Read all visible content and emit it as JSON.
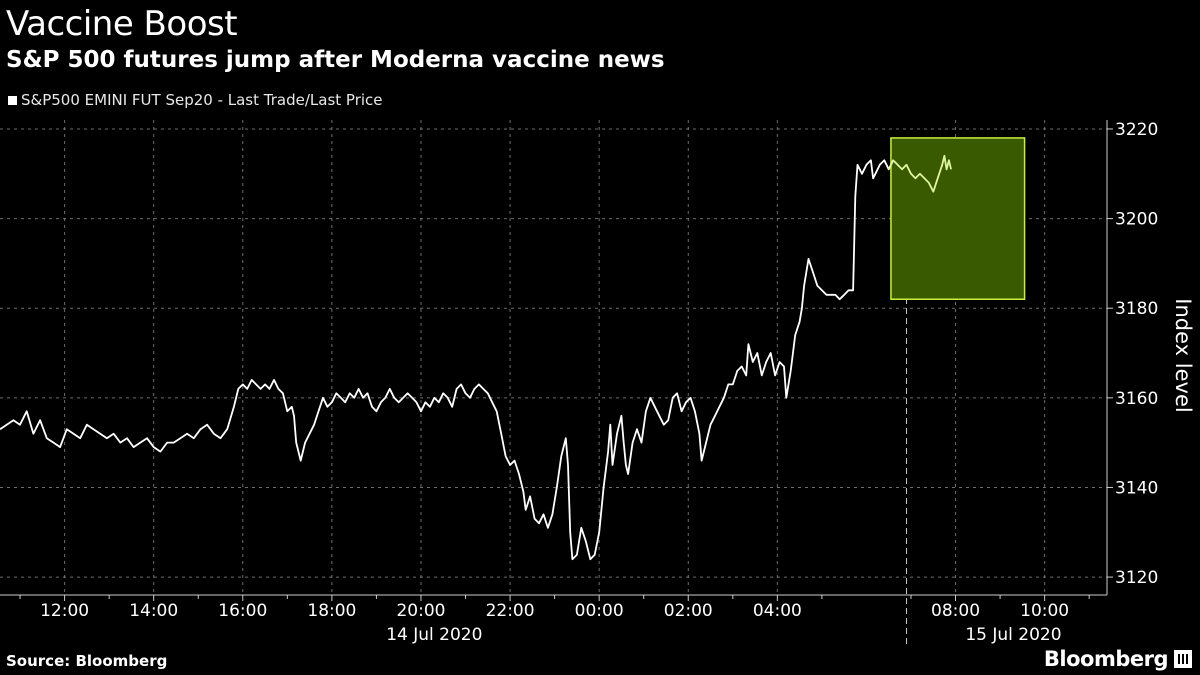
{
  "header": {
    "title": "Vaccine Boost",
    "subtitle": "S&P 500 futures jump after Moderna vaccine news"
  },
  "legend": {
    "label": "S&P500 EMINI FUT  Sep20 - Last Trade/Last Price"
  },
  "footer": {
    "source": "Source: Bloomberg",
    "brand": "Bloomberg"
  },
  "chart_data": {
    "type": "line",
    "ylabel": "Index level",
    "ylim": [
      3116,
      3222
    ],
    "yticks": [
      3120,
      3140,
      3160,
      3180,
      3200,
      3220
    ],
    "x_hours_range": [
      10.55,
      35.4
    ],
    "xticks": [
      {
        "label": "12:00",
        "h": 12
      },
      {
        "label": "14:00",
        "h": 14
      },
      {
        "label": "16:00",
        "h": 16
      },
      {
        "label": "18:00",
        "h": 18
      },
      {
        "label": "20:00",
        "h": 20
      },
      {
        "label": "22:00",
        "h": 22
      },
      {
        "label": "00:00",
        "h": 24
      },
      {
        "label": "02:00",
        "h": 26
      },
      {
        "label": "04:00",
        "h": 28
      },
      {
        "label": "08:00",
        "h": 32
      },
      {
        "label": "10:00",
        "h": 34
      }
    ],
    "date_labels": [
      {
        "label": "14 Jul 2020",
        "h": 20.3
      },
      {
        "label": "15 Jul 2020",
        "h": 33.3
      }
    ],
    "date_separator_h": 30.9,
    "highlight": {
      "x_from": 30.55,
      "x_to": 33.55,
      "y_from": 3182,
      "y_to": 3218,
      "fill": "#3a5a00",
      "stroke": "#c8f040",
      "line_color": "#dff5a0"
    },
    "colors": {
      "line": "#ffffff",
      "grid": "#888888",
      "axis": "#cccccc"
    },
    "series": [
      {
        "points": [
          [
            10.55,
            3153
          ],
          [
            10.7,
            3154
          ],
          [
            10.85,
            3155
          ],
          [
            11.0,
            3154
          ],
          [
            11.15,
            3157
          ],
          [
            11.3,
            3152
          ],
          [
            11.45,
            3155
          ],
          [
            11.6,
            3151
          ],
          [
            11.75,
            3150
          ],
          [
            11.9,
            3149
          ],
          [
            12.05,
            3153
          ],
          [
            12.2,
            3152
          ],
          [
            12.35,
            3151
          ],
          [
            12.5,
            3154
          ],
          [
            12.65,
            3153
          ],
          [
            12.8,
            3152
          ],
          [
            12.95,
            3151
          ],
          [
            13.1,
            3152
          ],
          [
            13.25,
            3150
          ],
          [
            13.4,
            3151
          ],
          [
            13.55,
            3149
          ],
          [
            13.7,
            3150
          ],
          [
            13.85,
            3151
          ],
          [
            14.0,
            3149
          ],
          [
            14.15,
            3148
          ],
          [
            14.3,
            3150
          ],
          [
            14.45,
            3150
          ],
          [
            14.6,
            3151
          ],
          [
            14.75,
            3152
          ],
          [
            14.9,
            3151
          ],
          [
            15.05,
            3153
          ],
          [
            15.2,
            3154
          ],
          [
            15.35,
            3152
          ],
          [
            15.5,
            3151
          ],
          [
            15.65,
            3153
          ],
          [
            15.8,
            3158
          ],
          [
            15.9,
            3162
          ],
          [
            16.0,
            3163
          ],
          [
            16.1,
            3162
          ],
          [
            16.2,
            3164
          ],
          [
            16.3,
            3163
          ],
          [
            16.4,
            3162
          ],
          [
            16.5,
            3163
          ],
          [
            16.6,
            3162
          ],
          [
            16.7,
            3164
          ],
          [
            16.8,
            3162
          ],
          [
            16.9,
            3161
          ],
          [
            17.0,
            3157
          ],
          [
            17.1,
            3158
          ],
          [
            17.15,
            3156
          ],
          [
            17.2,
            3150
          ],
          [
            17.3,
            3146
          ],
          [
            17.4,
            3150
          ],
          [
            17.5,
            3152
          ],
          [
            17.6,
            3154
          ],
          [
            17.7,
            3157
          ],
          [
            17.8,
            3160
          ],
          [
            17.9,
            3158
          ],
          [
            18.0,
            3159
          ],
          [
            18.1,
            3161
          ],
          [
            18.2,
            3160
          ],
          [
            18.3,
            3159
          ],
          [
            18.4,
            3161
          ],
          [
            18.5,
            3160
          ],
          [
            18.6,
            3162
          ],
          [
            18.7,
            3160
          ],
          [
            18.8,
            3161
          ],
          [
            18.9,
            3158
          ],
          [
            19.0,
            3157
          ],
          [
            19.1,
            3159
          ],
          [
            19.2,
            3160
          ],
          [
            19.3,
            3162
          ],
          [
            19.4,
            3160
          ],
          [
            19.5,
            3159
          ],
          [
            19.6,
            3160
          ],
          [
            19.7,
            3161
          ],
          [
            19.8,
            3160
          ],
          [
            19.9,
            3159
          ],
          [
            20.0,
            3157
          ],
          [
            20.1,
            3159
          ],
          [
            20.2,
            3158
          ],
          [
            20.3,
            3160
          ],
          [
            20.4,
            3159
          ],
          [
            20.5,
            3161
          ],
          [
            20.6,
            3160
          ],
          [
            20.7,
            3158
          ],
          [
            20.8,
            3162
          ],
          [
            20.9,
            3163
          ],
          [
            21.0,
            3161
          ],
          [
            21.1,
            3160
          ],
          [
            21.2,
            3162
          ],
          [
            21.3,
            3163
          ],
          [
            21.4,
            3162
          ],
          [
            21.5,
            3161
          ],
          [
            21.6,
            3159
          ],
          [
            21.7,
            3157
          ],
          [
            21.8,
            3152
          ],
          [
            21.9,
            3147
          ],
          [
            22.0,
            3145
          ],
          [
            22.1,
            3146
          ],
          [
            22.2,
            3143
          ],
          [
            22.3,
            3139
          ],
          [
            22.35,
            3135
          ],
          [
            22.45,
            3138
          ],
          [
            22.55,
            3133
          ],
          [
            22.65,
            3132
          ],
          [
            22.75,
            3134
          ],
          [
            22.85,
            3131
          ],
          [
            22.95,
            3134
          ],
          [
            23.05,
            3140
          ],
          [
            23.15,
            3147
          ],
          [
            23.25,
            3151
          ],
          [
            23.3,
            3145
          ],
          [
            23.35,
            3130
          ],
          [
            23.4,
            3124
          ],
          [
            23.5,
            3125
          ],
          [
            23.6,
            3131
          ],
          [
            23.7,
            3128
          ],
          [
            23.8,
            3124
          ],
          [
            23.9,
            3125
          ],
          [
            24.0,
            3130
          ],
          [
            24.1,
            3140
          ],
          [
            24.2,
            3148
          ],
          [
            24.25,
            3154
          ],
          [
            24.3,
            3145
          ],
          [
            24.4,
            3152
          ],
          [
            24.5,
            3156
          ],
          [
            24.55,
            3150
          ],
          [
            24.6,
            3145
          ],
          [
            24.65,
            3143
          ],
          [
            24.75,
            3150
          ],
          [
            24.85,
            3153
          ],
          [
            24.95,
            3150
          ],
          [
            25.05,
            3157
          ],
          [
            25.15,
            3160
          ],
          [
            25.25,
            3158
          ],
          [
            25.35,
            3156
          ],
          [
            25.45,
            3154
          ],
          [
            25.55,
            3155
          ],
          [
            25.65,
            3160
          ],
          [
            25.75,
            3161
          ],
          [
            25.85,
            3157
          ],
          [
            25.95,
            3159
          ],
          [
            26.05,
            3160
          ],
          [
            26.15,
            3157
          ],
          [
            26.25,
            3152
          ],
          [
            26.3,
            3146
          ],
          [
            26.4,
            3150
          ],
          [
            26.5,
            3154
          ],
          [
            26.6,
            3156
          ],
          [
            26.7,
            3158
          ],
          [
            26.8,
            3160
          ],
          [
            26.9,
            3163
          ],
          [
            27.0,
            3163
          ],
          [
            27.1,
            3166
          ],
          [
            27.2,
            3167
          ],
          [
            27.3,
            3165
          ],
          [
            27.35,
            3172
          ],
          [
            27.45,
            3168
          ],
          [
            27.55,
            3170
          ],
          [
            27.65,
            3165
          ],
          [
            27.75,
            3168
          ],
          [
            27.85,
            3170
          ],
          [
            27.95,
            3165
          ],
          [
            28.05,
            3168
          ],
          [
            28.15,
            3167
          ],
          [
            28.2,
            3160
          ],
          [
            28.3,
            3166
          ],
          [
            28.4,
            3174
          ],
          [
            28.5,
            3177
          ],
          [
            28.55,
            3180
          ],
          [
            28.6,
            3185
          ],
          [
            28.7,
            3191
          ],
          [
            28.8,
            3188
          ],
          [
            28.9,
            3185
          ],
          [
            29.0,
            3184
          ],
          [
            29.1,
            3183
          ],
          [
            29.2,
            3183
          ],
          [
            29.3,
            3183
          ],
          [
            29.4,
            3182
          ],
          [
            29.5,
            3183
          ],
          [
            29.6,
            3184
          ],
          [
            29.7,
            3184
          ],
          [
            29.75,
            3205
          ],
          [
            29.8,
            3212
          ],
          [
            29.9,
            3210
          ],
          [
            30.0,
            3212
          ],
          [
            30.1,
            3213
          ],
          [
            30.15,
            3209
          ],
          [
            30.2,
            3210
          ],
          [
            30.3,
            3212
          ],
          [
            30.4,
            3213
          ],
          [
            30.5,
            3211
          ],
          [
            30.6,
            3213
          ],
          [
            30.7,
            3212
          ],
          [
            30.8,
            3211
          ],
          [
            30.9,
            3212
          ],
          [
            31.0,
            3210
          ],
          [
            31.1,
            3209
          ],
          [
            31.2,
            3210
          ],
          [
            31.3,
            3209
          ],
          [
            31.4,
            3208
          ],
          [
            31.5,
            3206
          ],
          [
            31.6,
            3209
          ],
          [
            31.7,
            3212
          ],
          [
            31.75,
            3214
          ],
          [
            31.8,
            3211
          ],
          [
            31.85,
            3213
          ],
          [
            31.9,
            3211
          ]
        ]
      }
    ]
  }
}
